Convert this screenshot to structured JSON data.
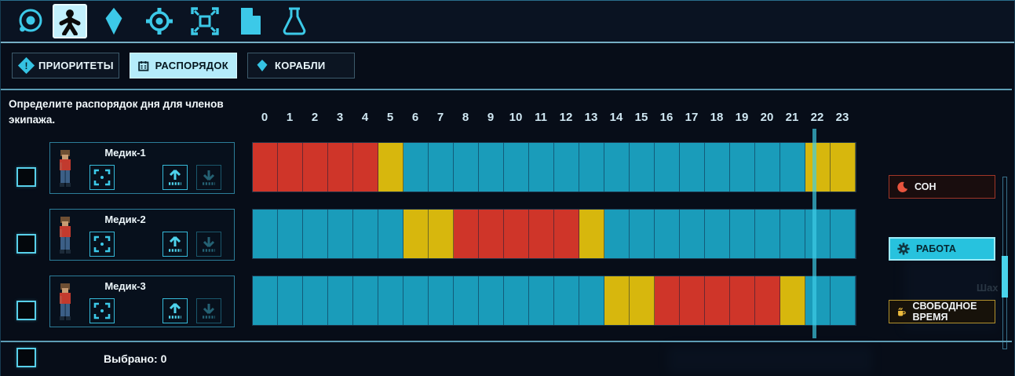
{
  "toolbar": {
    "icons": [
      {
        "name": "orbit",
        "selected": false
      },
      {
        "name": "crew",
        "selected": true
      },
      {
        "name": "shard",
        "selected": false
      },
      {
        "name": "target",
        "selected": false
      },
      {
        "name": "expand",
        "selected": false
      },
      {
        "name": "file",
        "selected": false
      },
      {
        "name": "flask",
        "selected": false
      }
    ]
  },
  "tabs": [
    {
      "label": "ПРИОРИТЕТЫ",
      "active": false
    },
    {
      "label": "РАСПОРЯДОК",
      "active": true
    },
    {
      "label": "КОРАБЛИ",
      "active": false
    }
  ],
  "description": "Определите распорядок дня для членов экипажа.",
  "hours": [
    "0",
    "1",
    "2",
    "3",
    "4",
    "5",
    "6",
    "7",
    "8",
    "9",
    "10",
    "11",
    "12",
    "13",
    "14",
    "15",
    "16",
    "17",
    "18",
    "19",
    "20",
    "21",
    "22",
    "23"
  ],
  "rows": [
    {
      "name": "Медик-1",
      "schedule": [
        "sleep",
        "sleep",
        "sleep",
        "sleep",
        "sleep",
        "free",
        "work",
        "work",
        "work",
        "work",
        "work",
        "work",
        "work",
        "work",
        "work",
        "work",
        "work",
        "work",
        "work",
        "work",
        "work",
        "work",
        "free",
        "free"
      ]
    },
    {
      "name": "Медик-2",
      "schedule": [
        "work",
        "work",
        "work",
        "work",
        "work",
        "work",
        "free",
        "free",
        "sleep",
        "sleep",
        "sleep",
        "sleep",
        "sleep",
        "free",
        "work",
        "work",
        "work",
        "work",
        "work",
        "work",
        "work",
        "work",
        "work",
        "work"
      ]
    },
    {
      "name": "Медик-3",
      "schedule": [
        "work",
        "work",
        "work",
        "work",
        "work",
        "work",
        "work",
        "work",
        "work",
        "work",
        "work",
        "work",
        "work",
        "work",
        "free",
        "free",
        "sleep",
        "sleep",
        "sleep",
        "sleep",
        "sleep",
        "free",
        "work",
        "work"
      ]
    }
  ],
  "legend": {
    "sleep": {
      "label": "СОН"
    },
    "work": {
      "label": "РАБОТА"
    },
    "free": {
      "label": "СВОБОДНОЕ ВРЕМЯ"
    }
  },
  "colors": {
    "sleep": "#cf3529",
    "work": "#1a9cba",
    "free": "#d7b70d",
    "accent": "#35c3e3",
    "active_tab_bg": "#b5ecfa"
  },
  "time_indicator": {
    "hour": 22.3
  },
  "footer": {
    "selected_label": "Выбрано: 0"
  },
  "background": {
    "faint_label": "Шах"
  }
}
